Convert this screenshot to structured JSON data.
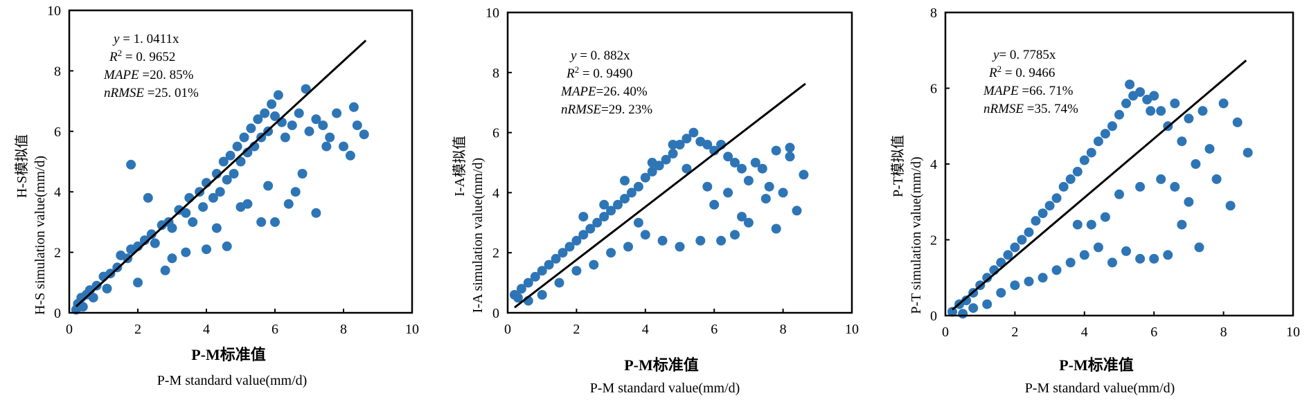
{
  "chart_data": [
    {
      "type": "scatter",
      "xlabel_cn": "P-M标准值",
      "xlabel_en": "P-M standard value(mm/d)",
      "ylabel_cn": "H-S模拟值",
      "ylabel_en": "H-S simulation value(mm/d)",
      "xlim": [
        0,
        10
      ],
      "ylim": [
        0,
        10
      ],
      "xticks": [
        "0",
        "2",
        "4",
        "6",
        "8",
        "10"
      ],
      "yticks": [
        "0",
        "2",
        "4",
        "6",
        "8",
        "10"
      ],
      "annotation": {
        "eq_var": "y",
        "eq_rhs": " = 1. 0411x",
        "r2_label": "R",
        "r2_sup": "2",
        "r2_rhs": " = 0. 9652",
        "mape_label": "MAPE",
        "mape_rhs": " =20. 85%",
        "nrmse_label": "nRMSE",
        "nrmse_rhs": " =25. 01%"
      },
      "fit": {
        "slope": 1.0411,
        "x": [
          0.2,
          8.65
        ]
      },
      "marker_color": "#2e75b6",
      "points": [
        [
          0.25,
          0.3
        ],
        [
          0.35,
          0.5
        ],
        [
          0.5,
          0.6
        ],
        [
          0.6,
          0.75
        ],
        [
          0.8,
          0.9
        ],
        [
          1.0,
          1.2
        ],
        [
          1.2,
          1.3
        ],
        [
          1.4,
          1.5
        ],
        [
          1.5,
          1.9
        ],
        [
          1.7,
          1.8
        ],
        [
          1.8,
          2.1
        ],
        [
          2.0,
          2.2
        ],
        [
          2.2,
          2.4
        ],
        [
          2.4,
          2.6
        ],
        [
          2.5,
          2.3
        ],
        [
          2.7,
          2.9
        ],
        [
          2.9,
          3.0
        ],
        [
          3.0,
          2.8
        ],
        [
          3.2,
          3.4
        ],
        [
          3.4,
          3.3
        ],
        [
          3.5,
          3.8
        ],
        [
          3.6,
          3.0
        ],
        [
          3.8,
          4.0
        ],
        [
          3.9,
          3.5
        ],
        [
          4.0,
          4.3
        ],
        [
          4.2,
          3.8
        ],
        [
          4.3,
          4.6
        ],
        [
          4.4,
          4.0
        ],
        [
          4.5,
          5.0
        ],
        [
          4.6,
          4.4
        ],
        [
          4.7,
          5.2
        ],
        [
          4.8,
          4.6
        ],
        [
          4.9,
          5.5
        ],
        [
          5.0,
          5.0
        ],
        [
          5.1,
          5.8
        ],
        [
          5.2,
          5.3
        ],
        [
          5.3,
          6.1
        ],
        [
          5.4,
          5.5
        ],
        [
          5.5,
          6.4
        ],
        [
          5.6,
          5.8
        ],
        [
          5.7,
          6.6
        ],
        [
          5.8,
          6.0
        ],
        [
          5.9,
          6.9
        ],
        [
          6.0,
          6.5
        ],
        [
          6.1,
          7.2
        ],
        [
          6.2,
          6.3
        ],
        [
          6.3,
          5.8
        ],
        [
          6.5,
          6.2
        ],
        [
          6.7,
          6.6
        ],
        [
          6.9,
          7.4
        ],
        [
          7.0,
          6.0
        ],
        [
          7.2,
          6.4
        ],
        [
          7.4,
          6.2
        ],
        [
          7.6,
          5.8
        ],
        [
          7.8,
          6.6
        ],
        [
          8.0,
          5.5
        ],
        [
          8.2,
          5.2
        ],
        [
          8.4,
          6.2
        ],
        [
          8.6,
          5.9
        ],
        [
          8.3,
          6.8
        ],
        [
          7.5,
          5.5
        ],
        [
          6.8,
          4.6
        ],
        [
          6.4,
          3.6
        ],
        [
          6.0,
          3.0
        ],
        [
          5.6,
          3.0
        ],
        [
          5.2,
          3.6
        ],
        [
          4.6,
          2.2
        ],
        [
          4.0,
          2.1
        ],
        [
          3.4,
          2.0
        ],
        [
          2.8,
          1.4
        ],
        [
          1.8,
          4.9
        ],
        [
          2.3,
          3.8
        ],
        [
          7.2,
          3.3
        ],
        [
          6.6,
          4.0
        ],
        [
          5.8,
          4.2
        ],
        [
          5.0,
          3.5
        ],
        [
          4.3,
          2.8
        ],
        [
          3.0,
          1.8
        ],
        [
          2.0,
          1.0
        ],
        [
          1.1,
          0.8
        ],
        [
          0.7,
          0.5
        ],
        [
          0.4,
          0.2
        ],
        [
          0.2,
          0.1
        ]
      ]
    },
    {
      "type": "scatter",
      "xlabel_cn": "P-M标准值",
      "xlabel_en": "P-M standard value(mm/d)",
      "ylabel_cn": "I-A模拟值",
      "ylabel_en": "I-A simulation value(mm/d)",
      "xlim": [
        0,
        10
      ],
      "ylim": [
        0,
        10
      ],
      "xticks": [
        "0",
        "2",
        "4",
        "6",
        "8",
        "10"
      ],
      "yticks": [
        "0",
        "2",
        "4",
        "6",
        "8",
        "10"
      ],
      "annotation": {
        "eq_var": "y",
        "eq_rhs": " = 0. 882x",
        "r2_label": "R",
        "r2_sup": "2",
        "r2_rhs": " = 0. 9490",
        "mape_label": "MAPE",
        "mape_rhs": "=26. 40%",
        "nrmse_label": "nRMSE",
        "nrmse_rhs": "=29. 23%"
      },
      "fit": {
        "slope": 0.882,
        "x": [
          0.2,
          8.65
        ]
      },
      "marker_color": "#2e75b6",
      "points": [
        [
          0.2,
          0.6
        ],
        [
          0.4,
          0.8
        ],
        [
          0.6,
          1.0
        ],
        [
          0.8,
          1.2
        ],
        [
          1.0,
          1.4
        ],
        [
          1.2,
          1.6
        ],
        [
          1.4,
          1.8
        ],
        [
          1.6,
          2.0
        ],
        [
          1.8,
          2.2
        ],
        [
          2.0,
          2.4
        ],
        [
          2.2,
          2.6
        ],
        [
          2.4,
          2.8
        ],
        [
          2.6,
          3.0
        ],
        [
          2.8,
          3.2
        ],
        [
          3.0,
          3.4
        ],
        [
          3.2,
          3.6
        ],
        [
          3.4,
          3.8
        ],
        [
          3.6,
          4.0
        ],
        [
          3.8,
          4.2
        ],
        [
          4.0,
          4.5
        ],
        [
          4.2,
          4.7
        ],
        [
          4.4,
          4.9
        ],
        [
          4.6,
          5.1
        ],
        [
          4.8,
          5.3
        ],
        [
          5.0,
          5.6
        ],
        [
          5.2,
          5.8
        ],
        [
          5.4,
          6.0
        ],
        [
          5.6,
          5.7
        ],
        [
          5.8,
          5.6
        ],
        [
          6.0,
          5.4
        ],
        [
          6.2,
          5.6
        ],
        [
          6.4,
          5.2
        ],
        [
          6.6,
          5.0
        ],
        [
          6.8,
          4.8
        ],
        [
          7.0,
          4.4
        ],
        [
          7.2,
          5.0
        ],
        [
          7.4,
          4.8
        ],
        [
          7.6,
          4.2
        ],
        [
          7.8,
          5.4
        ],
        [
          8.0,
          4.0
        ],
        [
          8.2,
          5.5
        ],
        [
          8.4,
          3.4
        ],
        [
          8.6,
          4.6
        ],
        [
          8.2,
          5.2
        ],
        [
          7.5,
          3.8
        ],
        [
          7.0,
          3.0
        ],
        [
          6.6,
          2.6
        ],
        [
          6.2,
          2.4
        ],
        [
          5.6,
          2.4
        ],
        [
          5.0,
          2.2
        ],
        [
          4.5,
          2.4
        ],
        [
          4.0,
          2.6
        ],
        [
          3.5,
          2.2
        ],
        [
          3.0,
          2.0
        ],
        [
          2.5,
          1.6
        ],
        [
          2.0,
          1.4
        ],
        [
          1.5,
          1.0
        ],
        [
          1.0,
          0.6
        ],
        [
          0.6,
          0.4
        ],
        [
          0.3,
          0.5
        ],
        [
          2.2,
          3.2
        ],
        [
          2.8,
          3.6
        ],
        [
          3.4,
          4.4
        ],
        [
          4.2,
          5.0
        ],
        [
          4.8,
          5.6
        ],
        [
          5.2,
          4.8
        ],
        [
          5.8,
          4.2
        ],
        [
          6.4,
          4.0
        ],
        [
          6.8,
          3.2
        ],
        [
          7.8,
          2.8
        ],
        [
          6.0,
          3.6
        ],
        [
          3.8,
          3.0
        ]
      ]
    },
    {
      "type": "scatter",
      "xlabel_cn": "P-M标准值",
      "xlabel_en": "P-M standard value(mm/d)",
      "ylabel_cn": "P-T模拟值",
      "ylabel_en": "P-T simulation value(mm/d)",
      "xlim": [
        0,
        10
      ],
      "ylim": [
        0,
        8
      ],
      "xticks": [
        "0",
        "2",
        "4",
        "6",
        "8",
        "10"
      ],
      "yticks": [
        "0",
        "2",
        "4",
        "6",
        "8"
      ],
      "annotation": {
        "eq_var": "y",
        "eq_rhs": "= 0. 7785x",
        "r2_label": "R",
        "r2_sup": "2",
        "r2_rhs": " = 0. 9466",
        "mape_label": "MAPE",
        "mape_rhs": " =66. 71%",
        "nrmse_label": "nRMSE",
        "nrmse_rhs": " =35. 74%"
      },
      "fit": {
        "slope": 0.7785,
        "x": [
          0.2,
          8.65
        ]
      },
      "marker_color": "#2e75b6",
      "points": [
        [
          0.2,
          0.1
        ],
        [
          0.4,
          0.3
        ],
        [
          0.6,
          0.4
        ],
        [
          0.8,
          0.6
        ],
        [
          1.0,
          0.8
        ],
        [
          1.2,
          1.0
        ],
        [
          1.4,
          1.2
        ],
        [
          1.6,
          1.4
        ],
        [
          1.8,
          1.6
        ],
        [
          2.0,
          1.8
        ],
        [
          2.2,
          2.0
        ],
        [
          2.4,
          2.2
        ],
        [
          2.6,
          2.5
        ],
        [
          2.8,
          2.7
        ],
        [
          3.0,
          2.9
        ],
        [
          3.2,
          3.1
        ],
        [
          3.4,
          3.4
        ],
        [
          3.6,
          3.6
        ],
        [
          3.8,
          3.8
        ],
        [
          4.0,
          4.1
        ],
        [
          4.2,
          4.3
        ],
        [
          4.4,
          4.6
        ],
        [
          4.6,
          4.8
        ],
        [
          4.8,
          5.0
        ],
        [
          5.0,
          5.3
        ],
        [
          5.2,
          5.6
        ],
        [
          5.4,
          5.8
        ],
        [
          5.6,
          5.9
        ],
        [
          5.8,
          5.7
        ],
        [
          6.0,
          5.8
        ],
        [
          6.2,
          5.4
        ],
        [
          6.4,
          5.0
        ],
        [
          6.6,
          5.6
        ],
        [
          6.8,
          4.6
        ],
        [
          7.0,
          5.2
        ],
        [
          7.2,
          4.0
        ],
        [
          7.4,
          5.4
        ],
        [
          7.6,
          4.4
        ],
        [
          7.8,
          3.6
        ],
        [
          8.0,
          5.6
        ],
        [
          8.2,
          2.9
        ],
        [
          8.4,
          5.1
        ],
        [
          8.7,
          4.3
        ],
        [
          7.3,
          1.8
        ],
        [
          7.0,
          3.0
        ],
        [
          6.8,
          2.4
        ],
        [
          6.4,
          1.6
        ],
        [
          6.0,
          1.5
        ],
        [
          5.6,
          1.5
        ],
        [
          5.2,
          1.7
        ],
        [
          4.8,
          1.4
        ],
        [
          4.4,
          1.8
        ],
        [
          4.0,
          1.6
        ],
        [
          3.6,
          1.4
        ],
        [
          3.2,
          1.2
        ],
        [
          2.8,
          1.0
        ],
        [
          2.4,
          0.9
        ],
        [
          2.0,
          0.8
        ],
        [
          1.6,
          0.6
        ],
        [
          1.2,
          0.3
        ],
        [
          0.8,
          0.2
        ],
        [
          0.5,
          0.05
        ],
        [
          5.0,
          3.2
        ],
        [
          5.6,
          3.4
        ],
        [
          6.2,
          3.6
        ],
        [
          4.6,
          2.6
        ],
        [
          4.2,
          2.4
        ],
        [
          3.8,
          2.4
        ],
        [
          5.3,
          6.1
        ],
        [
          5.9,
          5.4
        ],
        [
          6.6,
          3.4
        ]
      ]
    }
  ]
}
